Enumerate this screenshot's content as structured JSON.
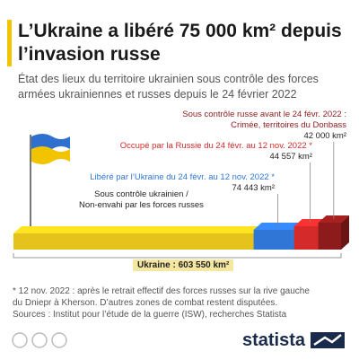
{
  "chart_data": {
    "type": "bar3d",
    "title": "L’Ukraine a libéré 75 000 km² depuis l’invasion russe",
    "subtitle": "État des lieux du territoire ukrainien sous contrôle des forces armées ukrainiennes et russes depuis le 24 février 2022",
    "total": {
      "value": 603550,
      "label": "Ukraine : 603 550 km²"
    },
    "series": [
      {
        "name": "Sous contrôle ukrainien /\nNon-envahi par les forces russes",
        "color": "#e5c21c",
        "values": [
          442550
        ]
      },
      {
        "name": "Libéré par l’Ukraine du 24 févr. au 12 nov. 2022 *",
        "color": "#2f76d6",
        "values": [
          74443
        ],
        "value_labels": [
          "74 443 km²"
        ]
      },
      {
        "name": "Occupé par la Russie du 24 févr. au 12 nov. 2022 *",
        "color": "#d42a2a",
        "values": [
          44557
        ],
        "value_labels": [
          "44 557 km²"
        ]
      },
      {
        "name": "Sous contrôle russe avant le 24 févr. 2022 :\nCrimée, territoires du Donbass",
        "color": "#8e1b1b",
        "values": [
          42000
        ],
        "value_labels": [
          "42 000 km²"
        ]
      }
    ],
    "footnote": "* 12 nov. 2022 : après le retrait effectif des forces russes sur la rive gauche\n    du Dniepr à Kherson. D’autres zones de combat restent disputées.",
    "source": "Sources : Institut pour l’étude de la guerre (ISW), recherches Statista"
  }
}
